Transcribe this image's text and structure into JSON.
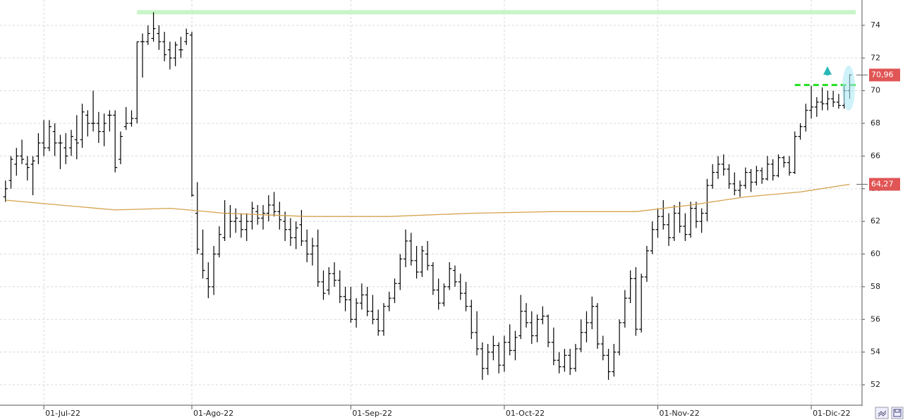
{
  "chart_data": {
    "type": "ohlc",
    "xlim": [
      -1,
      156
    ],
    "ylim": [
      50.75,
      75.55
    ],
    "yticks": [
      52,
      54,
      56,
      58,
      60,
      62,
      64,
      66,
      68,
      70,
      72,
      74
    ],
    "xticks": [
      {
        "value": 7,
        "label": "01-Jul-22"
      },
      {
        "value": 34,
        "label": "01-Ago-22"
      },
      {
        "value": 63,
        "label": "01-Sep-22"
      },
      {
        "value": 91,
        "label": "01-Oct-22"
      },
      {
        "value": 119,
        "label": "01-Nov-22"
      },
      {
        "value": 147,
        "label": "01-Dic-22"
      }
    ],
    "grid": true,
    "color": "#000000",
    "bars": [
      [
        63.5,
        64.5,
        63.2,
        64.0
      ],
      [
        64.5,
        66,
        64,
        65.8
      ],
      [
        65.5,
        66.5,
        64.8,
        66
      ],
      [
        66,
        67,
        65.5,
        65.8
      ],
      [
        65.5,
        66,
        64.5,
        65.3
      ],
      [
        65.5,
        66,
        63.6,
        65.7
      ],
      [
        66,
        67.4,
        65.5,
        66.8
      ],
      [
        66.8,
        68.2,
        66,
        66.5
      ],
      [
        66.5,
        68.2,
        66.3,
        67.8
      ],
      [
        67.5,
        68,
        66,
        66.8
      ],
      [
        66.8,
        67.3,
        65.2,
        66.8
      ],
      [
        66.5,
        67.4,
        65.5,
        66
      ],
      [
        66.5,
        67.6,
        66,
        67.2
      ],
      [
        67,
        68.5,
        65.8,
        66.8
      ],
      [
        67,
        69.2,
        66.5,
        68.7
      ],
      [
        68.5,
        68.8,
        67.2,
        68
      ],
      [
        68,
        70,
        67.5,
        68
      ],
      [
        68,
        68.7,
        66.8,
        67.5
      ],
      [
        67.5,
        68.6,
        66.6,
        68
      ],
      [
        68.5,
        68.8,
        67.5,
        68.5
      ],
      [
        68.5,
        68.8,
        65,
        65.3
      ],
      [
        65.8,
        67.5,
        65.5,
        67.2
      ],
      [
        67.8,
        69,
        67.6,
        68
      ],
      [
        68,
        68.8,
        67.8,
        68.3
      ],
      [
        68.3,
        73,
        68,
        73
      ],
      [
        73,
        73.5,
        70.8,
        73
      ],
      [
        73,
        74,
        72.8,
        73.5
      ],
      [
        73.2,
        74.8,
        73,
        73.8
      ],
      [
        73.5,
        74,
        72.5,
        73
      ],
      [
        73,
        73.6,
        71.8,
        72.2
      ],
      [
        72.5,
        73,
        71.3,
        72
      ],
      [
        72,
        73,
        71.5,
        72.8
      ],
      [
        72.5,
        73.3,
        72,
        72.5
      ],
      [
        73,
        73.8,
        72.8,
        73.5
      ],
      [
        73.4,
        73.6,
        63.5,
        63.6
      ],
      [
        62.5,
        64.4,
        60,
        60.3
      ],
      [
        60,
        61.5,
        58.5,
        59
      ],
      [
        58.5,
        59.5,
        57.3,
        58
      ],
      [
        58,
        60.5,
        57.5,
        60
      ],
      [
        60,
        61.7,
        59.8,
        61.2
      ],
      [
        61,
        63.3,
        60.8,
        62.5
      ],
      [
        62.5,
        63,
        61,
        62
      ],
      [
        62,
        62.8,
        61.3,
        62.2
      ],
      [
        62,
        62.5,
        61,
        61.5
      ],
      [
        61.5,
        62.5,
        60.8,
        62
      ],
      [
        62,
        63.2,
        61.5,
        62.8
      ],
      [
        62.6,
        63,
        61.8,
        62.2
      ],
      [
        62.2,
        63,
        61.5,
        62.5
      ],
      [
        62.5,
        63.6,
        62,
        63
      ],
      [
        63,
        63.8,
        62.3,
        62.6
      ],
      [
        62.6,
        63.2,
        61.5,
        62.1
      ],
      [
        62,
        62.6,
        60.8,
        61.5
      ],
      [
        61.5,
        62.2,
        60.5,
        61
      ],
      [
        61,
        62,
        60.3,
        61.6
      ],
      [
        61.8,
        62.7,
        60.5,
        60.8
      ],
      [
        60.8,
        61.5,
        59.5,
        60
      ],
      [
        60,
        61,
        59.3,
        60.5
      ],
      [
        60.5,
        61.5,
        58,
        58.3
      ],
      [
        58.3,
        59,
        57.2,
        57.6
      ],
      [
        57.8,
        59.2,
        57.5,
        58.8
      ],
      [
        58.8,
        59.5,
        58,
        58.4
      ],
      [
        58.4,
        59,
        57,
        57.4
      ],
      [
        57.4,
        58,
        56.5,
        57.2
      ],
      [
        57.2,
        58,
        55.8,
        56
      ],
      [
        56,
        57.3,
        55.5,
        57
      ],
      [
        57,
        58.2,
        56.6,
        57.5
      ],
      [
        57.5,
        58,
        56.2,
        56.5
      ],
      [
        56.5,
        57.5,
        55.7,
        56
      ],
      [
        56,
        56.6,
        55,
        55.3
      ],
      [
        55.3,
        57,
        55,
        56.8
      ],
      [
        56.8,
        57.7,
        56.5,
        57.3
      ],
      [
        57.3,
        58.5,
        57,
        58.2
      ],
      [
        58.2,
        60,
        57.8,
        59.7
      ],
      [
        59.7,
        61.5,
        59.2,
        60.8
      ],
      [
        60.8,
        61.3,
        59.3,
        59.6
      ],
      [
        59.6,
        60.5,
        58.5,
        58.9
      ],
      [
        58.9,
        60.5,
        58.6,
        60.2
      ],
      [
        60,
        60.8,
        59,
        59.3
      ],
      [
        59.3,
        59.5,
        57.5,
        57.8
      ],
      [
        57.8,
        58.5,
        56.6,
        57
      ],
      [
        57,
        58.2,
        56.8,
        58
      ],
      [
        58,
        59.5,
        57.8,
        59.1
      ],
      [
        59,
        59.3,
        58,
        58.3
      ],
      [
        58.3,
        58.8,
        57.2,
        57.6
      ],
      [
        57.6,
        58.3,
        56.5,
        56.8
      ],
      [
        56.8,
        57.2,
        54.8,
        55.2
      ],
      [
        55.2,
        56.5,
        53.8,
        54.2
      ],
      [
        54.2,
        54.6,
        52.3,
        53
      ],
      [
        53,
        54.5,
        52.6,
        54
      ],
      [
        54,
        55,
        53.5,
        54.4
      ],
      [
        54.4,
        54.6,
        52.7,
        53.2
      ],
      [
        53.2,
        55,
        52.8,
        54.6
      ],
      [
        54.6,
        55.7,
        53.8,
        54.1
      ],
      [
        54.1,
        55.3,
        53.5,
        54.9
      ],
      [
        55,
        57.5,
        54.8,
        56.5
      ],
      [
        56.5,
        57,
        55.5,
        55.8
      ],
      [
        55.8,
        56.5,
        54.5,
        55
      ],
      [
        55,
        56.3,
        54.6,
        56
      ],
      [
        56,
        56.8,
        55.7,
        56.2
      ],
      [
        56.2,
        56.3,
        54.3,
        54.6
      ],
      [
        54.6,
        55.5,
        53.2,
        53.5
      ],
      [
        53.5,
        54,
        52.7,
        53.1
      ],
      [
        53.1,
        54.2,
        52.8,
        53.8
      ],
      [
        53.8,
        54.2,
        52.6,
        53
      ],
      [
        53,
        54.5,
        52.8,
        54.2
      ],
      [
        54.2,
        56,
        54,
        55.2
      ],
      [
        55.2,
        56.5,
        54.6,
        55.8
      ],
      [
        55.8,
        57.4,
        55.4,
        56.8
      ],
      [
        56.8,
        57,
        54.2,
        54.5
      ],
      [
        54.5,
        55,
        53.5,
        53.8
      ],
      [
        53.8,
        54.2,
        52.3,
        52.8
      ],
      [
        52.8,
        54.5,
        52.5,
        54
      ],
      [
        54,
        56,
        53.8,
        55.8
      ],
      [
        55.8,
        57.8,
        55.5,
        57.3
      ],
      [
        57.3,
        59,
        57,
        58.5
      ],
      [
        58.5,
        59.2,
        55,
        55.4
      ],
      [
        55.4,
        58.8,
        55.2,
        58.6
      ],
      [
        58.6,
        60.5,
        58.3,
        60.2
      ],
      [
        60.2,
        62,
        60,
        61.5
      ],
      [
        61.5,
        62.8,
        61,
        62.3
      ],
      [
        62.3,
        63.3,
        61.5,
        61.8
      ],
      [
        61.8,
        62.5,
        60.5,
        61
      ],
      [
        61,
        63,
        60.8,
        62.5
      ],
      [
        62.5,
        63.2,
        61.3,
        61.7
      ],
      [
        61.7,
        62.5,
        60.8,
        61.2
      ],
      [
        61.2,
        63.2,
        61,
        62.8
      ],
      [
        62.8,
        63.2,
        61.6,
        62
      ],
      [
        62,
        62.8,
        61.3,
        62.5
      ],
      [
        62.5,
        64.6,
        62,
        64.2
      ],
      [
        64.2,
        65.5,
        64,
        65
      ],
      [
        65,
        66,
        64.6,
        65.5
      ],
      [
        65.5,
        66.1,
        64.8,
        65.2
      ],
      [
        65.2,
        65.5,
        64,
        64.3
      ],
      [
        64.3,
        65,
        63.6,
        63.9
      ],
      [
        63.9,
        64.5,
        63.5,
        64.2
      ],
      [
        64.2,
        65.3,
        64,
        65
      ],
      [
        65,
        65.2,
        63.8,
        64.4
      ],
      [
        64.4,
        65.4,
        64.2,
        65.1
      ],
      [
        65.1,
        65.3,
        64.3,
        64.6
      ],
      [
        64.6,
        66,
        64.5,
        65.5
      ],
      [
        65.5,
        65.8,
        64.5,
        64.8
      ],
      [
        64.8,
        66.1,
        64.7,
        65.9
      ],
      [
        65.9,
        66,
        65.3,
        65.6
      ],
      [
        65.6,
        66,
        64.8,
        65
      ],
      [
        65,
        67.5,
        64.9,
        67.2
      ],
      [
        67.2,
        68,
        67,
        67.8
      ],
      [
        67.8,
        69.2,
        67.5,
        68.8
      ],
      [
        68.8,
        70.3,
        68.3,
        69
      ],
      [
        69,
        69.6,
        68.4,
        69.3
      ],
      [
        69.3,
        70.2,
        68.8,
        69.2
      ],
      [
        69.2,
        70,
        68.8,
        69.5
      ],
      [
        69.5,
        70,
        69,
        69.3
      ],
      [
        69.3,
        69.8,
        68.9,
        69.1
      ],
      [
        69.1,
        70.3,
        68.9,
        70
      ],
      [
        70,
        71,
        69.5,
        70.96
      ]
    ],
    "moving_average": {
      "color": "#d4a24c",
      "x": [
        0,
        10,
        20,
        30,
        40,
        55,
        70,
        85,
        100,
        115,
        125,
        135,
        145,
        154
      ],
      "values": [
        63.3,
        63.0,
        62.7,
        62.8,
        62.5,
        62.3,
        62.3,
        62.5,
        62.6,
        62.6,
        63.0,
        63.5,
        63.8,
        64.27
      ]
    },
    "price_labels": [
      {
        "value": 70.96,
        "label": "70,96"
      },
      {
        "value": 64.27,
        "label": "64,27"
      }
    ],
    "levels": [
      {
        "value": 74.8,
        "x_from": 24,
        "color": "#c8f5c8",
        "dashed": false
      },
      {
        "value": 70.35,
        "x_from": 144,
        "color": "#22dd22",
        "dashed": true
      }
    ]
  }
}
